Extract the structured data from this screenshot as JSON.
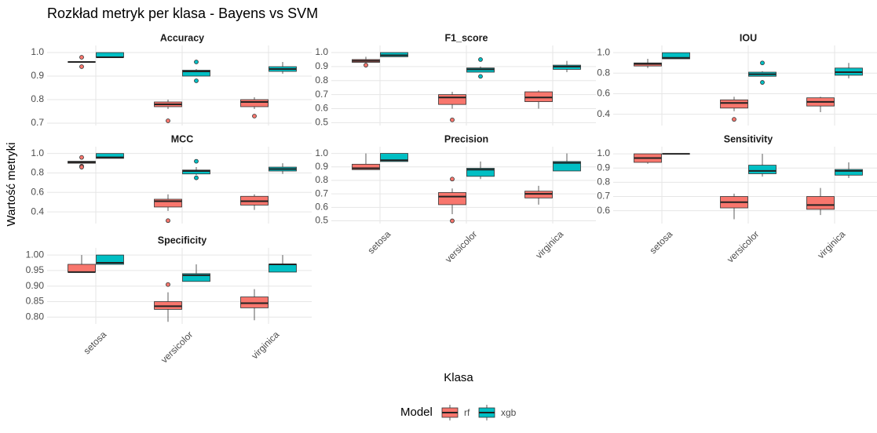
{
  "chart_data": {
    "type": "box",
    "title": "Rozkład metryk per klasa - Bayens vs SVM",
    "x_label": "Klasa",
    "y_label": "Wartość metryki",
    "legend_title": "Model",
    "categories": [
      "setosa",
      "versicolor",
      "virginica"
    ],
    "series": [
      {
        "name": "rf",
        "color": "#F8766D"
      },
      {
        "name": "xgb",
        "color": "#00BFC4"
      }
    ],
    "grid": true,
    "panels": [
      {
        "title": "Accuracy",
        "ylim": [
          0.69,
          1.03
        ],
        "yticks": [
          0.7,
          0.8,
          0.9,
          {
            "value": 1,
            "label": "1.0"
          }
        ],
        "boxes": [
          [
            {
              "q1": 0.96,
              "median": 0.96,
              "q3": 0.96,
              "low": 0.96,
              "high": 0.96,
              "outliers": [
                0.98,
                0.94
              ]
            },
            {
              "q1": 0.77,
              "median": 0.78,
              "q3": 0.79,
              "low": 0.76,
              "high": 0.8,
              "outliers": [
                0.71
              ]
            },
            {
              "q1": 0.77,
              "median": 0.79,
              "q3": 0.8,
              "low": 0.76,
              "high": 0.81,
              "outliers": [
                0.73
              ]
            }
          ],
          [
            {
              "q1": 0.98,
              "median": 0.98,
              "q3": 1,
              "low": 0.98,
              "high": 1
            },
            {
              "q1": 0.9,
              "median": 0.92,
              "q3": 0.925,
              "low": 0.9,
              "high": 0.93,
              "outliers": [
                0.96,
                0.88
              ]
            },
            {
              "q1": 0.92,
              "median": 0.93,
              "q3": 0.94,
              "low": 0.91,
              "high": 0.96
            }
          ]
        ]
      },
      {
        "title": "F1_score",
        "ylim": [
          0.48,
          1.05
        ],
        "yticks": [
          0.5,
          0.6,
          0.7,
          0.8,
          0.9,
          {
            "value": 1,
            "label": "1.0"
          }
        ],
        "boxes": [
          [
            {
              "q1": 0.93,
              "median": 0.94,
              "q3": 0.95,
              "low": 0.93,
              "high": 0.97,
              "outliers": [
                0.91
              ]
            },
            {
              "q1": 0.63,
              "median": 0.68,
              "q3": 0.7,
              "low": 0.6,
              "high": 0.72,
              "outliers": [
                0.52
              ]
            },
            {
              "q1": 0.65,
              "median": 0.68,
              "q3": 0.72,
              "low": 0.6,
              "high": 0.73
            }
          ],
          [
            {
              "q1": 0.97,
              "median": 0.98,
              "q3": 1,
              "low": 0.97,
              "high": 1
            },
            {
              "q1": 0.86,
              "median": 0.88,
              "q3": 0.89,
              "low": 0.86,
              "high": 0.9,
              "outliers": [
                0.95,
                0.83
              ]
            },
            {
              "q1": 0.88,
              "median": 0.9,
              "q3": 0.91,
              "low": 0.86,
              "high": 0.94
            }
          ]
        ]
      },
      {
        "title": "IOU",
        "ylim": [
          0.29,
          1.07
        ],
        "yticks": [
          0.4,
          0.6,
          0.8,
          {
            "value": 1,
            "label": "1.0"
          }
        ],
        "boxes": [
          [
            {
              "q1": 0.87,
              "median": 0.89,
              "q3": 0.9,
              "low": 0.85,
              "high": 0.94
            },
            {
              "q1": 0.46,
              "median": 0.51,
              "q3": 0.54,
              "low": 0.43,
              "high": 0.57,
              "outliers": [
                0.35
              ]
            },
            {
              "q1": 0.48,
              "median": 0.52,
              "q3": 0.56,
              "low": 0.42,
              "high": 0.57
            }
          ],
          [
            {
              "q1": 0.94,
              "median": 0.95,
              "q3": 1,
              "low": 0.94,
              "high": 1
            },
            {
              "q1": 0.77,
              "median": 0.79,
              "q3": 0.81,
              "low": 0.77,
              "high": 0.82,
              "outliers": [
                0.9,
                0.71
              ]
            },
            {
              "q1": 0.78,
              "median": 0.81,
              "q3": 0.85,
              "low": 0.75,
              "high": 0.9
            }
          ]
        ]
      },
      {
        "title": "MCC",
        "ylim": [
          0.28,
          1.07
        ],
        "yticks": [
          0.4,
          0.6,
          0.8,
          {
            "value": 1,
            "label": "1.0"
          }
        ],
        "boxes": [
          [
            {
              "q1": 0.9,
              "median": 0.91,
              "q3": 0.92,
              "low": 0.9,
              "high": 0.92,
              "outliers": [
                0.96,
                0.87,
                0.86
              ]
            },
            {
              "q1": 0.45,
              "median": 0.51,
              "q3": 0.53,
              "low": 0.41,
              "high": 0.58,
              "outliers": [
                0.31
              ]
            },
            {
              "q1": 0.47,
              "median": 0.51,
              "q3": 0.56,
              "low": 0.42,
              "high": 0.58
            }
          ],
          [
            {
              "q1": 0.95,
              "median": 0.96,
              "q3": 1,
              "low": 0.95,
              "high": 1
            },
            {
              "q1": 0.79,
              "median": 0.82,
              "q3": 0.83,
              "low": 0.78,
              "high": 0.86,
              "outliers": [
                0.92,
                0.75
              ]
            },
            {
              "q1": 0.82,
              "median": 0.84,
              "q3": 0.86,
              "low": 0.79,
              "high": 0.9
            }
          ]
        ]
      },
      {
        "title": "Precision",
        "ylim": [
          0.48,
          1.05
        ],
        "yticks": [
          0.5,
          0.6,
          0.7,
          0.8,
          0.9,
          {
            "value": 1,
            "label": "1.0"
          }
        ],
        "boxes": [
          [
            {
              "q1": 0.88,
              "median": 0.89,
              "q3": 0.92,
              "low": 0.88,
              "high": 1
            },
            {
              "q1": 0.62,
              "median": 0.68,
              "q3": 0.71,
              "low": 0.55,
              "high": 0.74,
              "outliers": [
                0.81,
                0.5
              ]
            },
            {
              "q1": 0.67,
              "median": 0.7,
              "q3": 0.72,
              "low": 0.62,
              "high": 0.76
            }
          ],
          [
            {
              "q1": 0.94,
              "median": 0.95,
              "q3": 1,
              "low": 0.94,
              "high": 1
            },
            {
              "q1": 0.83,
              "median": 0.88,
              "q3": 0.89,
              "low": 0.81,
              "high": 0.94
            },
            {
              "q1": 0.87,
              "median": 0.93,
              "q3": 0.94,
              "low": 0.87,
              "high": 1
            }
          ]
        ]
      },
      {
        "title": "Sensitivity",
        "ylim": [
          0.51,
          1.05
        ],
        "yticks": [
          0.6,
          0.7,
          0.8,
          0.9,
          {
            "value": 1,
            "label": "1.0"
          }
        ],
        "boxes": [
          [
            {
              "q1": 0.94,
              "median": 0.97,
              "q3": 1,
              "low": 0.93,
              "high": 1
            },
            {
              "q1": 0.62,
              "median": 0.66,
              "q3": 0.7,
              "low": 0.54,
              "high": 0.72
            },
            {
              "q1": 0.61,
              "median": 0.64,
              "q3": 0.7,
              "low": 0.57,
              "high": 0.76
            }
          ],
          [
            {
              "q1": 1,
              "median": 1,
              "q3": 1,
              "low": 1,
              "high": 1
            },
            {
              "q1": 0.86,
              "median": 0.88,
              "q3": 0.92,
              "low": 0.84,
              "high": 1
            },
            {
              "q1": 0.85,
              "median": 0.88,
              "q3": 0.89,
              "low": 0.83,
              "high": 0.94
            }
          ]
        ]
      },
      {
        "title": "Specificity",
        "ylim": [
          0.778,
          1.023
        ],
        "yticks": [
          {
            "value": 0.8,
            "label": "0.80"
          },
          0.85,
          {
            "value": 0.9,
            "label": "0.90"
          },
          0.95,
          {
            "value": 1,
            "label": "1.00"
          }
        ],
        "boxes": [
          [
            {
              "q1": 0.945,
              "median": 0.945,
              "q3": 0.97,
              "low": 0.945,
              "high": 1
            },
            {
              "q1": 0.825,
              "median": 0.835,
              "q3": 0.85,
              "low": 0.785,
              "high": 0.88,
              "outliers": [
                0.905
              ]
            },
            {
              "q1": 0.83,
              "median": 0.845,
              "q3": 0.865,
              "low": 0.79,
              "high": 0.89
            }
          ],
          [
            {
              "q1": 0.97,
              "median": 0.975,
              "q3": 1,
              "low": 0.97,
              "high": 1
            },
            {
              "q1": 0.915,
              "median": 0.935,
              "q3": 0.94,
              "low": 0.915,
              "high": 0.97
            },
            {
              "q1": 0.945,
              "median": 0.97,
              "q3": 0.97,
              "low": 0.945,
              "high": 1
            }
          ]
        ]
      }
    ]
  }
}
